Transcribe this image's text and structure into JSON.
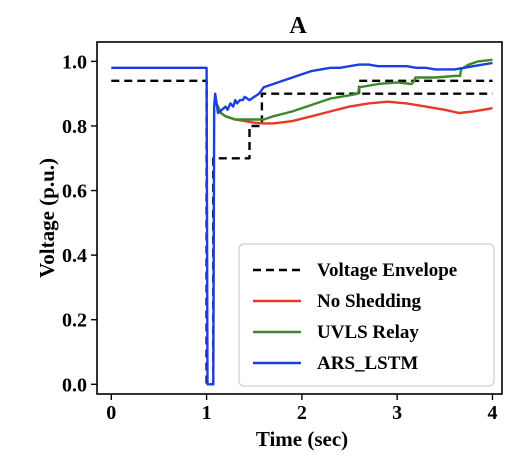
{
  "chart_data": {
    "type": "line",
    "title": "A",
    "xlabel": "Time (sec)",
    "ylabel": "Voltage (p.u.)",
    "xlim": [
      -0.15,
      4.1
    ],
    "ylim": [
      -0.03,
      1.06
    ],
    "xticks": [
      0,
      1,
      2,
      3,
      4
    ],
    "yticks": [
      0.0,
      0.2,
      0.4,
      0.6,
      0.8,
      1.0
    ],
    "xtick_labels": [
      "0",
      "1",
      "2",
      "3",
      "4"
    ],
    "ytick_labels": [
      "0.0",
      "0.2",
      "0.4",
      "0.6",
      "0.8",
      "1.0"
    ],
    "grid": false,
    "legend_position": "lower-right",
    "series": [
      {
        "name": "Voltage Envelope",
        "color": "#000000",
        "dash": "dashed",
        "x": [
          0,
          1.0,
          1.0,
          1.07,
          1.07,
          1.45,
          1.45,
          1.58,
          1.58,
          4.0
        ],
        "y": [
          0.94,
          0.94,
          0.0,
          0.0,
          0.7,
          0.7,
          0.8,
          0.8,
          0.9,
          0.9
        ],
        "x2": [
          2.6,
          2.6,
          4.0
        ],
        "y2": [
          0.9,
          0.94,
          0.94
        ]
      },
      {
        "name": "No Shedding",
        "color": "#e8382a",
        "x": [
          1.08,
          1.12,
          1.15,
          1.2,
          1.3,
          1.4,
          1.5,
          1.6,
          1.7,
          1.9,
          2.1,
          2.3,
          2.5,
          2.7,
          2.9,
          3.1,
          3.3,
          3.5,
          3.65,
          3.8,
          4.0
        ],
        "y": [
          0.88,
          0.86,
          0.84,
          0.83,
          0.82,
          0.815,
          0.81,
          0.808,
          0.808,
          0.815,
          0.83,
          0.845,
          0.86,
          0.87,
          0.875,
          0.87,
          0.86,
          0.85,
          0.84,
          0.845,
          0.855
        ]
      },
      {
        "name": "UVLS Relay",
        "color": "#3a8a2c",
        "x": [
          1.08,
          1.12,
          1.15,
          1.2,
          1.3,
          1.4,
          1.5,
          1.6,
          1.7,
          1.9,
          2.1,
          2.3,
          2.5,
          2.59,
          2.6,
          2.61,
          2.8,
          3.0,
          3.15,
          3.18,
          3.19,
          3.4,
          3.6,
          3.66,
          3.67,
          3.75,
          3.85,
          4.0
        ],
        "y": [
          0.88,
          0.86,
          0.84,
          0.83,
          0.82,
          0.82,
          0.82,
          0.82,
          0.83,
          0.845,
          0.865,
          0.885,
          0.895,
          0.9,
          0.92,
          0.92,
          0.93,
          0.935,
          0.93,
          0.94,
          0.95,
          0.95,
          0.955,
          0.955,
          0.975,
          0.99,
          1.0,
          1.005
        ]
      },
      {
        "name": "ARS_LSTM",
        "color": "#1a3fe0",
        "x": [
          0,
          0.98,
          1.0,
          1.01,
          1.05,
          1.07,
          1.08,
          1.09,
          1.12,
          1.16,
          1.2,
          1.22,
          1.25,
          1.28,
          1.3,
          1.32,
          1.35,
          1.38,
          1.4,
          1.45,
          1.5,
          1.55,
          1.6,
          1.7,
          1.8,
          1.9,
          2.0,
          2.1,
          2.2,
          2.3,
          2.4,
          2.5,
          2.6,
          2.7,
          2.8,
          2.9,
          3.0,
          3.1,
          3.2,
          3.3,
          3.4,
          3.5,
          3.6,
          3.7,
          3.8,
          3.9,
          4.0
        ],
        "y": [
          0.98,
          0.98,
          0.98,
          0.0,
          0.0,
          0.0,
          0.86,
          0.9,
          0.84,
          0.85,
          0.86,
          0.85,
          0.87,
          0.86,
          0.88,
          0.87,
          0.88,
          0.88,
          0.89,
          0.88,
          0.89,
          0.9,
          0.92,
          0.93,
          0.94,
          0.95,
          0.96,
          0.97,
          0.975,
          0.98,
          0.98,
          0.985,
          0.99,
          0.99,
          0.985,
          0.985,
          0.985,
          0.985,
          0.98,
          0.98,
          0.975,
          0.975,
          0.975,
          0.98,
          0.985,
          0.99,
          0.995
        ]
      }
    ]
  }
}
